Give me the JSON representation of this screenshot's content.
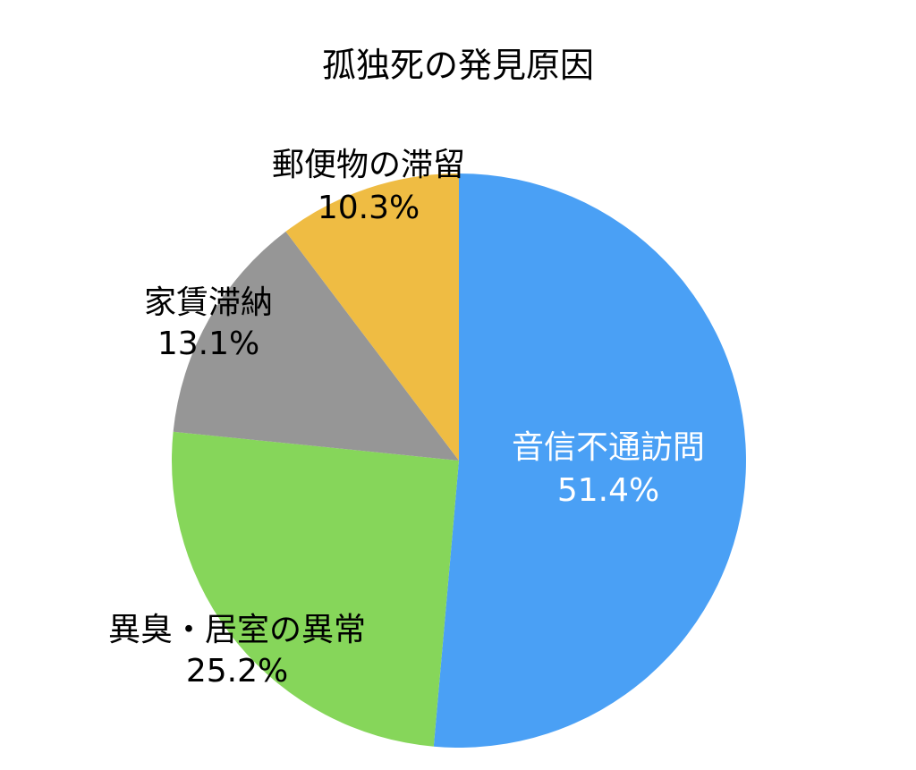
{
  "chart_data": {
    "type": "pie",
    "title": "孤独死の発見原因",
    "start_angle": "12 o'clock",
    "direction": "clockwise",
    "slices": [
      {
        "label": "音信不通訪問",
        "value": 51.4,
        "value_label": "51.4%",
        "color": "#4aa0f5",
        "label_color": "#ffffff"
      },
      {
        "label": "異臭・居室の異常",
        "value": 25.2,
        "value_label": "25.2%",
        "color": "#86d65a",
        "label_color": "#000000"
      },
      {
        "label": "家賃滞納",
        "value": 13.1,
        "value_label": "13.1%",
        "color": "#969696",
        "label_color": "#000000"
      },
      {
        "label": "郵便物の滞留",
        "value": 10.3,
        "value_label": "10.3%",
        "color": "#efbc43",
        "label_color": "#000000"
      }
    ]
  }
}
